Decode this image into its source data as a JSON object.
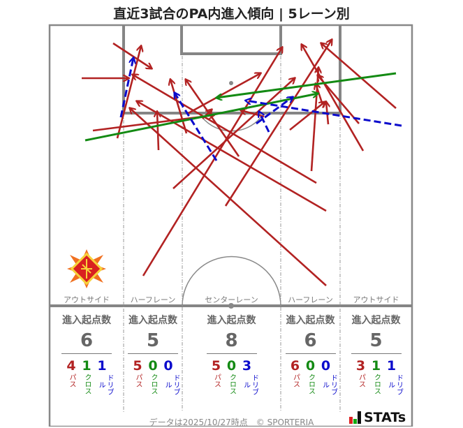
{
  "title": "直近3試合のPA内進入傾向 | 5レーン別",
  "colors": {
    "pass": "#b22222",
    "cross": "#138a13",
    "dribble": "#0b0bcc"
  },
  "lanes": [
    {
      "name": "アウトサイド",
      "header": "進入起点数",
      "total": "6",
      "pass": "4",
      "cross": "1",
      "dribble": "1"
    },
    {
      "name": "ハーフレーン",
      "header": "進入起点数",
      "total": "5",
      "pass": "5",
      "cross": "0",
      "dribble": "0"
    },
    {
      "name": "センターレーン",
      "header": "進入起点数",
      "total": "8",
      "pass": "5",
      "cross": "0",
      "dribble": "3"
    },
    {
      "name": "ハーフレーン",
      "header": "進入起点数",
      "total": "6",
      "pass": "6",
      "cross": "0",
      "dribble": "0"
    },
    {
      "name": "アウトサイド",
      "header": "進入起点数",
      "total": "5",
      "pass": "3",
      "cross": "1",
      "dribble": "1"
    }
  ],
  "type_labels": {
    "pass": "パス",
    "cross": "クロス",
    "dribble": "ドリブル"
  },
  "footer": "データは2025/10/27時点　© SPORTERIA",
  "brand": "STATs",
  "icons": {
    "team_logo": "team-crest-icon",
    "brand_logo": "stats-bars-icon"
  }
}
